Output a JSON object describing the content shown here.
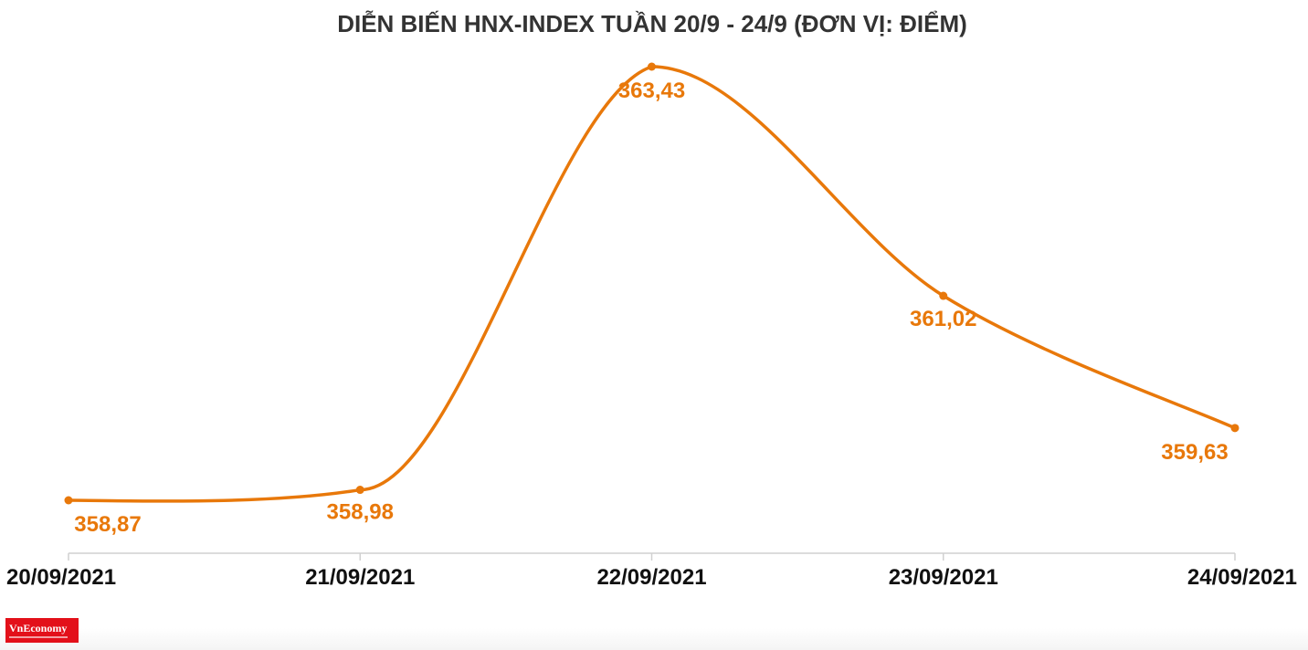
{
  "title": "DIỄN BIẾN HNX-INDEX TUẦN 20/9 - 24/9 (ĐƠN VỊ: ĐIỂM)",
  "logo": "VnEconomy",
  "colors": {
    "line": "#e8780a",
    "axis": "#d0d0d0",
    "title": "#333333",
    "logo": "#e3101a"
  },
  "chart_data": {
    "type": "line",
    "title": "DIỄN BIẾN HNX-INDEX TUẦN 20/9 - 24/9 (ĐƠN VỊ: ĐIỂM)",
    "xlabel": "",
    "ylabel": "",
    "categories": [
      "20/09/2021",
      "21/09/2021",
      "22/09/2021",
      "23/09/2021",
      "24/09/2021"
    ],
    "values": [
      358.87,
      358.98,
      363.43,
      361.02,
      359.63
    ],
    "value_labels": [
      "358,87",
      "358,98",
      "363,43",
      "361,02",
      "359,63"
    ],
    "ylim": [
      358.0,
      364.0
    ],
    "grid": false,
    "legend": "none",
    "smooth": true
  }
}
